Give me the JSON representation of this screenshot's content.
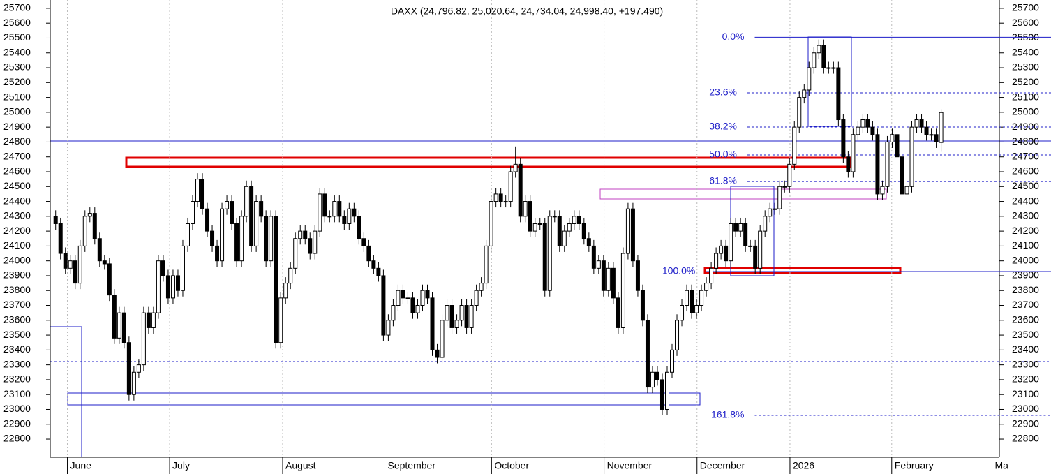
{
  "chart_data": {
    "type": "candlestick",
    "title": "DAXX (24,796.82, 25,020.64, 24,734.04, 24,998.40, +197.490)",
    "up_color": "#ffffff",
    "down_color": "#000000",
    "open": [
      24300,
      24250,
      24050,
      23950,
      24000,
      23850,
      24100,
      24300,
      24320,
      24150,
      24000,
      23980,
      23770,
      23480,
      23650,
      23450,
      23100,
      23250,
      23300,
      23650,
      23550,
      23650,
      24000,
      23900,
      23750,
      23900,
      23800,
      24100,
      24250,
      24400,
      24550,
      24350,
      24200,
      24100,
      24000,
      24350,
      24400,
      24250,
      24000,
      24300,
      24500,
      24100,
      24400,
      24300,
      24000,
      24300,
      23450,
      23750,
      23850,
      23950,
      24150,
      24200,
      24150,
      24050,
      24200,
      24450,
      24300,
      24300,
      24400,
      24300,
      24250,
      24350,
      24300,
      24150,
      24100,
      24000,
      23950,
      23900,
      23500,
      23600,
      23700,
      23800,
      23750,
      23750,
      23650,
      23700,
      23800,
      23750,
      23400,
      23350,
      23600,
      23700,
      23550,
      23600,
      23700,
      23550,
      23700,
      23800,
      23850,
      24100,
      24400,
      24450,
      24400,
      24400,
      24600,
      24650,
      24300,
      24400,
      24200,
      24250,
      24250,
      23800,
      24300,
      24300,
      24100,
      24200,
      24250,
      24300,
      24250,
      24150,
      24100,
      23950,
      24000,
      23800,
      23950,
      23750,
      23550,
      24050,
      24350,
      24000,
      23800,
      23600,
      23150,
      23250,
      23200,
      23000,
      23250,
      23400,
      23600,
      23700,
      23800,
      23650,
      23700,
      23800,
      23850,
      23950,
      24050,
      24100,
      24000,
      24250,
      24200,
      24250,
      24100,
      24100,
      23950,
      24200,
      24300,
      24350,
      24350,
      24500,
      24500,
      24650,
      24900,
      25100,
      25150,
      25300,
      25400,
      25450,
      25300,
      25300,
      25300,
      24950,
      24700,
      24600,
      24850,
      24900,
      24950,
      24900,
      24850,
      24450,
      24500,
      24800,
      24850,
      24700,
      24450,
      24500,
      24900,
      24950,
      24900,
      24850,
      24850,
      24796.82
    ],
    "high": [
      24340,
      24290,
      24090,
      24040,
      24040,
      24140,
      24340,
      24360,
      24360,
      24190,
      24040,
      24020,
      23810,
      23690,
      23690,
      23490,
      23290,
      23340,
      23690,
      23690,
      23690,
      24040,
      24040,
      23940,
      23940,
      23940,
      24140,
      24290,
      24440,
      24590,
      24590,
      24390,
      24240,
      24140,
      24390,
      24440,
      24440,
      24290,
      24340,
      24540,
      24540,
      24440,
      24440,
      24340,
      24340,
      24340,
      23790,
      23890,
      23990,
      24190,
      24240,
      24240,
      24190,
      24240,
      24490,
      24490,
      24340,
      24440,
      24440,
      24340,
      24390,
      24390,
      24340,
      24190,
      24140,
      24040,
      23990,
      23940,
      23640,
      23740,
      23840,
      23840,
      23790,
      23790,
      23740,
      23840,
      23840,
      23790,
      23440,
      23640,
      23740,
      23740,
      23640,
      23740,
      23740,
      23740,
      23840,
      23890,
      24140,
      24440,
      24490,
      24490,
      24440,
      24640,
      24770,
      24690,
      24440,
      24440,
      24290,
      24290,
      24290,
      24340,
      24340,
      24340,
      24240,
      24290,
      24340,
      24340,
      24290,
      24190,
      24140,
      24040,
      24040,
      23990,
      23990,
      23790,
      24090,
      24390,
      24390,
      24040,
      23840,
      23640,
      23290,
      23290,
      23240,
      23290,
      23440,
      23640,
      23740,
      23840,
      23840,
      23740,
      23840,
      23890,
      23990,
      24090,
      24140,
      24140,
      24290,
      24290,
      24290,
      24290,
      24140,
      24140,
      24240,
      24340,
      24390,
      24390,
      24540,
      24540,
      24690,
      24940,
      25140,
      25190,
      25340,
      25440,
      25490,
      25490,
      25340,
      25340,
      25340,
      24990,
      24740,
      24890,
      24940,
      24990,
      24990,
      24940,
      24890,
      24540,
      24840,
      24890,
      24890,
      24740,
      24540,
      24940,
      24990,
      24990,
      24940,
      24890,
      24890,
      25020.64
    ],
    "low": [
      24210,
      24010,
      23910,
      23910,
      23810,
      23810,
      24060,
      24260,
      24110,
      23960,
      23940,
      23730,
      23440,
      23440,
      23410,
      23060,
      23060,
      23210,
      23260,
      23510,
      23510,
      23610,
      23860,
      23710,
      23710,
      23760,
      23760,
      24060,
      24210,
      24360,
      24310,
      24160,
      24060,
      23960,
      23960,
      24310,
      24210,
      23960,
      23960,
      24260,
      24060,
      24060,
      24260,
      23960,
      23960,
      23410,
      23410,
      23710,
      23810,
      23910,
      24110,
      24110,
      24010,
      24010,
      24160,
      24260,
      24260,
      24260,
      24260,
      24210,
      24210,
      24260,
      24110,
      24060,
      23960,
      23910,
      23860,
      23460,
      23460,
      23560,
      23660,
      23710,
      23710,
      23610,
      23610,
      23660,
      23710,
      23360,
      23310,
      23310,
      23560,
      23510,
      23510,
      23560,
      23510,
      23510,
      23660,
      23760,
      23810,
      24060,
      24360,
      24360,
      24360,
      24360,
      24560,
      24260,
      24260,
      24160,
      24160,
      24210,
      23760,
      23760,
      24260,
      24060,
      24060,
      24160,
      24210,
      24210,
      24110,
      24060,
      23910,
      23910,
      23760,
      23760,
      23710,
      23510,
      23510,
      24010,
      23960,
      23760,
      23560,
      23110,
      23110,
      23160,
      22960,
      22960,
      23210,
      23360,
      23560,
      23660,
      23610,
      23610,
      23660,
      23760,
      23810,
      23910,
      24010,
      23960,
      23960,
      24160,
      24160,
      24060,
      24060,
      23910,
      23910,
      24160,
      24260,
      24310,
      24310,
      24460,
      24460,
      24610,
      24860,
      25060,
      25110,
      25260,
      25360,
      25260,
      25260,
      25260,
      24910,
      24660,
      24560,
      24560,
      24810,
      24860,
      24860,
      24810,
      24410,
      24410,
      24460,
      24760,
      24660,
      24410,
      24410,
      24460,
      24860,
      24860,
      24810,
      24810,
      24760,
      24734.04
    ],
    "close": [
      24250,
      24050,
      23950,
      24000,
      23850,
      24100,
      24300,
      24320,
      24150,
      24000,
      23980,
      23770,
      23480,
      23650,
      23450,
      23100,
      23250,
      23300,
      23650,
      23550,
      23650,
      24000,
      23900,
      23750,
      23900,
      23800,
      24100,
      24250,
      24400,
      24550,
      24350,
      24200,
      24100,
      24000,
      24350,
      24400,
      24250,
      24000,
      24300,
      24500,
      24100,
      24400,
      24300,
      24000,
      24300,
      23450,
      23750,
      23850,
      23950,
      24150,
      24200,
      24150,
      24050,
      24200,
      24450,
      24300,
      24300,
      24400,
      24300,
      24250,
      24350,
      24300,
      24150,
      24100,
      24000,
      23950,
      23900,
      23500,
      23600,
      23700,
      23800,
      23750,
      23750,
      23650,
      23700,
      23800,
      23750,
      23400,
      23350,
      23600,
      23700,
      23550,
      23600,
      23700,
      23550,
      23700,
      23800,
      23850,
      24100,
      24400,
      24450,
      24400,
      24400,
      24600,
      24650,
      24300,
      24400,
      24200,
      24250,
      24250,
      23800,
      24300,
      24300,
      24100,
      24200,
      24250,
      24300,
      24250,
      24150,
      24100,
      23950,
      24000,
      23800,
      23950,
      23750,
      23550,
      24050,
      24350,
      24000,
      23800,
      23600,
      23150,
      23250,
      23200,
      23000,
      23250,
      23400,
      23600,
      23700,
      23800,
      23650,
      23700,
      23800,
      23850,
      23950,
      24050,
      24100,
      24000,
      24250,
      24200,
      24250,
      24100,
      24100,
      23950,
      24200,
      24300,
      24350,
      24350,
      24500,
      24500,
      24650,
      24900,
      25100,
      25150,
      25300,
      25400,
      25450,
      25300,
      25300,
      25300,
      24950,
      24700,
      24600,
      24850,
      24900,
      24950,
      24900,
      24850,
      24450,
      24500,
      24800,
      24850,
      24700,
      24450,
      24500,
      24900,
      24950,
      24900,
      24850,
      24850,
      24800,
      24998.4
    ],
    "xlim": [
      -1.1,
      192.9
    ],
    "xticks": [
      {
        "value": 2.4,
        "label": "June"
      },
      {
        "value": 23.3,
        "label": "July"
      },
      {
        "value": 46.4,
        "label": "August"
      },
      {
        "value": 67.3,
        "label": "September"
      },
      {
        "value": 89.1,
        "label": "October"
      },
      {
        "value": 112.1,
        "label": "November"
      },
      {
        "value": 131.1,
        "label": "December"
      },
      {
        "value": 150.1,
        "label": "2026"
      },
      {
        "value": 170.9,
        "label": "February"
      },
      {
        "value": 191.4,
        "label": "Ma"
      }
    ],
    "ylim": [
      22678,
      25756
    ],
    "yticks": [
      22800,
      22900,
      23000,
      23100,
      23200,
      23300,
      23400,
      23500,
      23600,
      23700,
      23800,
      23900,
      24000,
      24100,
      24200,
      24300,
      24400,
      24500,
      24600,
      24700,
      24800,
      24900,
      25000,
      25100,
      25200,
      25300,
      25400,
      25500,
      25600,
      25700
    ],
    "levels": [
      {
        "label": "0.0%",
        "value": 25505,
        "start": 142.9,
        "dashed": false
      },
      {
        "label": "23.6%",
        "value": 25131,
        "start": 141.4,
        "dashed": true
      },
      {
        "label": "38.2%",
        "value": 24901,
        "start": 141.4,
        "dashed": true
      },
      {
        "label": "50.0%",
        "value": 24713,
        "start": 141.4,
        "dashed": true
      },
      {
        "label": "61.8%",
        "value": 24535,
        "start": 141.4,
        "dashed": true
      },
      {
        "label": "100.0%",
        "value": 23928,
        "start": 132.9,
        "dashed": false
      },
      {
        "label": "161.8%",
        "value": 22960,
        "start": 142.9,
        "dashed": true
      }
    ],
    "level_color": "#1c1cc8"
  }
}
